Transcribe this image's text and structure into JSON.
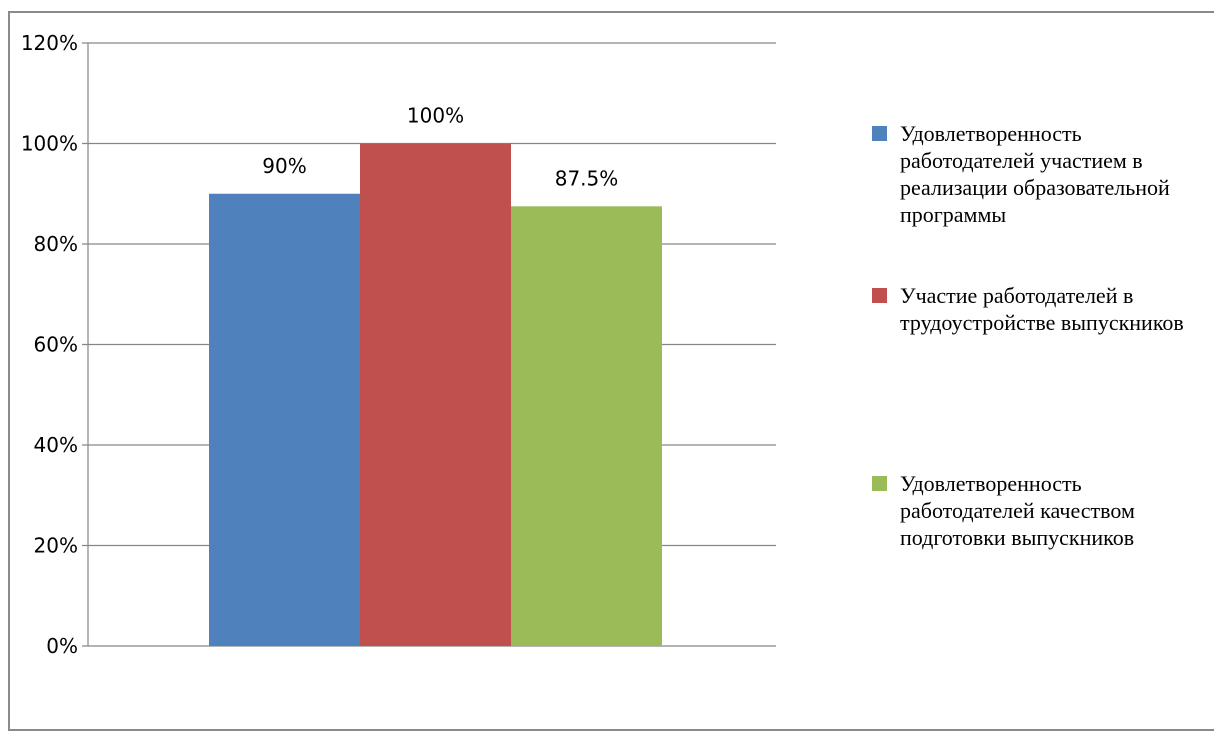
{
  "chart_data": {
    "type": "bar",
    "categories": [
      ""
    ],
    "series": [
      {
        "name": "Удовлетворенность работодателей участием в реализации образовательной программы",
        "values": [
          90
        ],
        "label": "90%",
        "color": "#4f81bd"
      },
      {
        "name": "Участие работодателей в трудоустройстве выпускников",
        "values": [
          100
        ],
        "label": "100%",
        "color": "#c0504d"
      },
      {
        "name": "Удовлетворенность работодателей качеством подготовки выпускников",
        "values": [
          87.5
        ],
        "label": "87.5%",
        "color": "#9bbb59"
      }
    ],
    "yticks": [
      "0%",
      "20%",
      "40%",
      "60%",
      "80%",
      "100%",
      "120%"
    ],
    "ylim": [
      0,
      120
    ],
    "grid": true,
    "legend_position": "right",
    "title": "",
    "xlabel": "",
    "ylabel": ""
  }
}
